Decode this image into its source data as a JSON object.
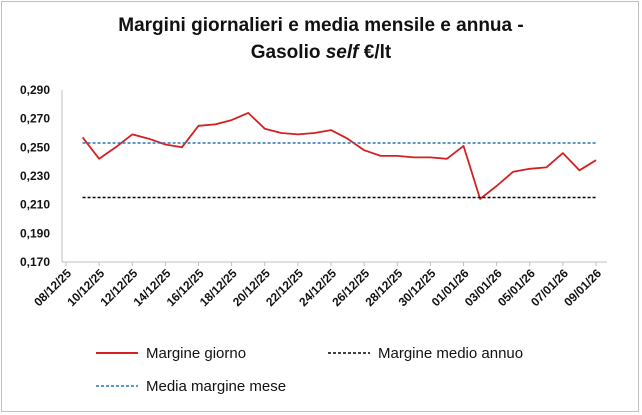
{
  "chart_data": {
    "type": "line",
    "title": {
      "line1": "Margini giornalieri e media mensile e annua -",
      "line2_prefix": "Gasolio ",
      "line2_italic": "self",
      "line2_suffix": " €/lt"
    },
    "xlabel": "",
    "ylabel": "",
    "ylim": [
      0.17,
      0.29
    ],
    "yticks": [
      "0,170",
      "0,190",
      "0,210",
      "0,230",
      "0,250",
      "0,270",
      "0,290"
    ],
    "xticks": [
      "08/12/25",
      "10/12/25",
      "12/12/25",
      "14/12/25",
      "16/12/25",
      "18/12/25",
      "20/12/25",
      "22/12/25",
      "24/12/25",
      "26/12/25",
      "28/12/25",
      "30/12/25",
      "01/01/26",
      "03/01/26",
      "05/01/26",
      "07/01/26",
      "09/01/26"
    ],
    "legend_position": "bottom",
    "grid": false,
    "series": [
      {
        "name": "Margine giorno",
        "color": "#d42020",
        "style": "solid",
        "points": [
          [
            "09/12/25",
            0.257
          ],
          [
            "10/12/25",
            0.242
          ],
          [
            "11/12/25",
            0.25
          ],
          [
            "12/12/25",
            0.259
          ],
          [
            "13/12/25",
            0.256
          ],
          [
            "14/12/25",
            0.252
          ],
          [
            "15/12/25",
            0.25
          ],
          [
            "16/12/25",
            0.265
          ],
          [
            "17/12/25",
            0.266
          ],
          [
            "18/12/25",
            0.269
          ],
          [
            "19/12/25",
            0.274
          ],
          [
            "20/12/25",
            0.263
          ],
          [
            "21/12/25",
            0.26
          ],
          [
            "22/12/25",
            0.259
          ],
          [
            "23/12/25",
            0.26
          ],
          [
            "24/12/25",
            0.262
          ],
          [
            "25/12/25",
            0.256
          ],
          [
            "26/12/25",
            0.248
          ],
          [
            "27/12/25",
            0.244
          ],
          [
            "28/12/25",
            0.244
          ],
          [
            "29/12/25",
            0.243
          ],
          [
            "30/12/25",
            0.243
          ],
          [
            "31/12/25",
            0.242
          ],
          [
            "01/01/26",
            0.251
          ],
          [
            "02/01/26",
            0.214
          ],
          [
            "03/01/26",
            0.223
          ],
          [
            "04/01/26",
            0.233
          ],
          [
            "05/01/26",
            0.235
          ],
          [
            "06/01/26",
            0.236
          ],
          [
            "07/01/26",
            0.246
          ],
          [
            "08/01/26",
            0.234
          ],
          [
            "09/01/26",
            0.241
          ]
        ]
      },
      {
        "name": "Margine medio annuo",
        "color": "#000000",
        "style": "dashed",
        "value": 0.215
      },
      {
        "name": "Media margine mese",
        "color": "#2a73b6",
        "style": "dashed",
        "value": 0.253
      }
    ]
  }
}
